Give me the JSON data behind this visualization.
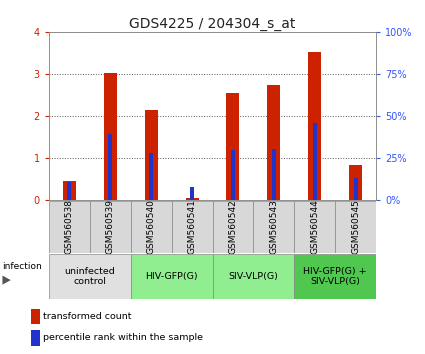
{
  "title": "GDS4225 / 204304_s_at",
  "samples": [
    "GSM560538",
    "GSM560539",
    "GSM560540",
    "GSM560541",
    "GSM560542",
    "GSM560543",
    "GSM560544",
    "GSM560545"
  ],
  "red_values": [
    0.45,
    3.02,
    2.15,
    0.05,
    2.55,
    2.73,
    3.52,
    0.83
  ],
  "blue_percentiles": [
    10.5,
    39.0,
    28.0,
    8.0,
    29.5,
    30.5,
    46.0,
    13.0
  ],
  "groups": [
    {
      "label": "uninfected\ncontrol",
      "start": 0,
      "end": 2,
      "color": "#e0e0e0"
    },
    {
      "label": "HIV-GFP(G)",
      "start": 2,
      "end": 4,
      "color": "#90ee90"
    },
    {
      "label": "SIV-VLP(G)",
      "start": 4,
      "end": 6,
      "color": "#90ee90"
    },
    {
      "label": "HIV-GFP(G) +\nSIV-VLP(G)",
      "start": 6,
      "end": 8,
      "color": "#50c850"
    }
  ],
  "ylim_left": [
    0,
    4
  ],
  "ylim_right": [
    0,
    100
  ],
  "yticks_left": [
    0,
    1,
    2,
    3,
    4
  ],
  "yticks_right": [
    0,
    25,
    50,
    75,
    100
  ],
  "red_bar_width": 0.32,
  "blue_bar_width": 0.1,
  "red_color": "#cc2200",
  "blue_color": "#2233cc",
  "infection_label": "infection",
  "legend_red": "transformed count",
  "legend_blue": "percentile rank within the sample",
  "title_fontsize": 10,
  "tick_fontsize": 7,
  "label_fontsize": 6.5,
  "group_fontsize": 6.8,
  "legend_fontsize": 6.8
}
